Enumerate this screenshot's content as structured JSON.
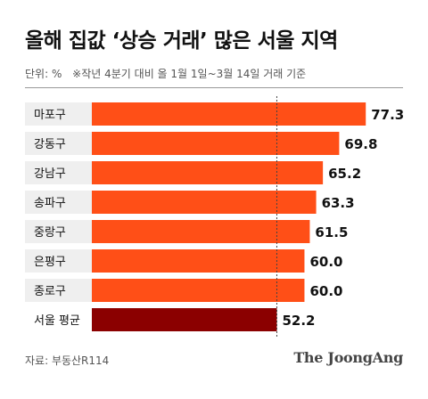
{
  "title": "올해 집값 ‘상승 거래’ 많은 서울 지역",
  "unit_label": "단위: %",
  "note": "※작년 4분기 대비 올 1월 1일~3월 14일 거래 기준",
  "source": "자료: 부동산R114",
  "brand": "The JoongAng",
  "colors": {
    "bar": "#FF4F17",
    "highlight_bar": "#8B0000",
    "label_bg": "#EFEFEF",
    "highlight_label_bg": "#FFFFFF",
    "reference_line": "#444444"
  },
  "chart_data": {
    "type": "bar",
    "orientation": "horizontal",
    "categories": [
      "마포구",
      "강동구",
      "강남구",
      "송파구",
      "중랑구",
      "은평구",
      "종로구",
      "서울 평균"
    ],
    "values": [
      77.3,
      69.8,
      65.2,
      63.3,
      61.5,
      60.0,
      60.0,
      52.2
    ],
    "value_labels": [
      "77.3",
      "69.8",
      "65.2",
      "63.3",
      "61.5",
      "60.0",
      "60.0",
      "52.2"
    ],
    "highlight_category": "서울 평균",
    "reference_value": 52.2,
    "xlim": [
      0,
      78
    ],
    "grid": false,
    "legend": "none"
  }
}
